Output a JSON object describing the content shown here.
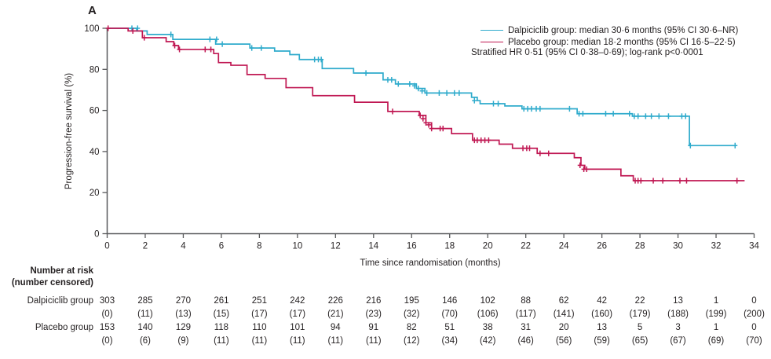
{
  "panel_label": "A",
  "colors": {
    "dalpiciclib": "#2FABCC",
    "placebo": "#C01853",
    "axis": "#58595b",
    "text": "#231f20"
  },
  "chart_data": {
    "type": "line",
    "subtype": "kaplan-meier-step",
    "title": "",
    "xlabel": "Time since randomisation (months)",
    "ylabel": "Progression-free survival (%)",
    "xlim": [
      0,
      34
    ],
    "ylim": [
      0,
      100
    ],
    "xticks": [
      0,
      2,
      4,
      6,
      8,
      10,
      12,
      14,
      16,
      18,
      20,
      22,
      24,
      26,
      28,
      30,
      32,
      34
    ],
    "yticks": [
      0,
      20,
      40,
      60,
      80,
      100
    ],
    "grid": false,
    "legend_position": "top-right",
    "annotation": "Stratified HR 0·51 (95% CI 0·38–0·69); log-rank p<0·0001",
    "series": [
      {
        "name": "Dalpiciclib group",
        "legend": "Dalpiciclib group: median 30·6 months (95% CI 30·6–NR)",
        "color": "#2FABCC",
        "end_month": 33.0,
        "steps": [
          [
            0,
            100
          ],
          [
            1.55,
            98.7
          ],
          [
            2.1,
            97.0
          ],
          [
            3.45,
            94.6
          ],
          [
            5.7,
            92.3
          ],
          [
            7.5,
            90.4
          ],
          [
            8.8,
            88.9
          ],
          [
            9.6,
            87.2
          ],
          [
            10.1,
            84.8
          ],
          [
            11.3,
            80.4
          ],
          [
            12.95,
            78.2
          ],
          [
            14.5,
            74.9
          ],
          [
            15.15,
            72.9
          ],
          [
            16.25,
            70.7
          ],
          [
            16.7,
            68.5
          ],
          [
            19.15,
            66.4
          ],
          [
            19.45,
            64.8
          ],
          [
            19.6,
            63.3
          ],
          [
            20.9,
            62.2
          ],
          [
            21.8,
            60.8
          ],
          [
            24.7,
            58.4
          ],
          [
            27.6,
            57.2
          ],
          [
            30.6,
            42.9
          ]
        ],
        "censors": [
          [
            1.3,
            100
          ],
          [
            1.6,
            100
          ],
          [
            3.35,
            97.0
          ],
          [
            5.4,
            94.6
          ],
          [
            5.75,
            94.6
          ],
          [
            6.05,
            92.3
          ],
          [
            7.6,
            90.4
          ],
          [
            8.1,
            90.4
          ],
          [
            10.9,
            84.8
          ],
          [
            11.1,
            84.8
          ],
          [
            11.25,
            84.8
          ],
          [
            13.6,
            78.2
          ],
          [
            14.75,
            74.9
          ],
          [
            14.95,
            74.9
          ],
          [
            15.3,
            72.9
          ],
          [
            15.9,
            72.9
          ],
          [
            16.15,
            72.0
          ],
          [
            16.35,
            70.7
          ],
          [
            16.55,
            69.5
          ],
          [
            16.8,
            68.5
          ],
          [
            17.45,
            68.5
          ],
          [
            17.85,
            68.5
          ],
          [
            18.25,
            68.5
          ],
          [
            18.5,
            68.5
          ],
          [
            19.3,
            64.8
          ],
          [
            20.3,
            63.3
          ],
          [
            20.55,
            63.3
          ],
          [
            21.9,
            60.8
          ],
          [
            22.1,
            60.8
          ],
          [
            22.3,
            60.8
          ],
          [
            22.55,
            60.8
          ],
          [
            22.75,
            60.8
          ],
          [
            24.3,
            60.8
          ],
          [
            24.8,
            58.4
          ],
          [
            25.0,
            58.4
          ],
          [
            26.2,
            58.4
          ],
          [
            26.6,
            58.4
          ],
          [
            27.45,
            58.4
          ],
          [
            27.7,
            57.2
          ],
          [
            27.9,
            57.2
          ],
          [
            28.3,
            57.2
          ],
          [
            28.6,
            57.2
          ],
          [
            29.0,
            57.2
          ],
          [
            29.5,
            57.2
          ],
          [
            30.2,
            57.2
          ],
          [
            30.4,
            57.2
          ],
          [
            30.65,
            42.9
          ],
          [
            33.0,
            42.9
          ]
        ]
      },
      {
        "name": "Placebo group",
        "legend": "Placebo group: median 18·2 months (95% CI 16·5–22·5)",
        "color": "#C01853",
        "end_month": 33.5,
        "steps": [
          [
            0,
            100
          ],
          [
            1.1,
            98.7
          ],
          [
            1.85,
            95.4
          ],
          [
            3.1,
            93.5
          ],
          [
            3.5,
            91.6
          ],
          [
            3.75,
            89.7
          ],
          [
            5.6,
            87.7
          ],
          [
            5.85,
            83.3
          ],
          [
            6.5,
            82.0
          ],
          [
            7.35,
            77.5
          ],
          [
            8.3,
            75.6
          ],
          [
            9.4,
            71.1
          ],
          [
            10.8,
            67.2
          ],
          [
            13.0,
            64.0
          ],
          [
            14.75,
            59.5
          ],
          [
            16.4,
            57.6
          ],
          [
            16.75,
            54.0
          ],
          [
            17.05,
            51.2
          ],
          [
            18.1,
            48.7
          ],
          [
            19.2,
            45.5
          ],
          [
            20.6,
            43.6
          ],
          [
            21.3,
            41.6
          ],
          [
            22.6,
            39.1
          ],
          [
            24.55,
            37.0
          ],
          [
            24.9,
            33.3
          ],
          [
            25.1,
            31.4
          ],
          [
            27.0,
            28.2
          ],
          [
            27.65,
            25.8
          ]
        ],
        "censors": [
          [
            0.05,
            100
          ],
          [
            1.35,
            98.7
          ],
          [
            1.95,
            95.4
          ],
          [
            3.55,
            91.6
          ],
          [
            3.8,
            89.7
          ],
          [
            5.15,
            89.7
          ],
          [
            5.45,
            89.7
          ],
          [
            15.0,
            59.5
          ],
          [
            16.45,
            57.6
          ],
          [
            16.6,
            56.0
          ],
          [
            16.75,
            54.0
          ],
          [
            16.9,
            53.0
          ],
          [
            17.05,
            51.2
          ],
          [
            17.5,
            51.2
          ],
          [
            17.65,
            51.2
          ],
          [
            19.3,
            45.5
          ],
          [
            19.45,
            45.5
          ],
          [
            19.65,
            45.5
          ],
          [
            19.85,
            45.5
          ],
          [
            20.05,
            45.5
          ],
          [
            21.85,
            41.6
          ],
          [
            22.05,
            41.6
          ],
          [
            22.2,
            41.6
          ],
          [
            22.75,
            39.1
          ],
          [
            23.2,
            39.1
          ],
          [
            24.85,
            33.3
          ],
          [
            25.05,
            31.4
          ],
          [
            25.2,
            31.4
          ],
          [
            27.75,
            25.8
          ],
          [
            27.9,
            25.8
          ],
          [
            28.05,
            25.8
          ],
          [
            28.7,
            25.8
          ],
          [
            29.2,
            25.8
          ],
          [
            30.1,
            25.8
          ],
          [
            30.45,
            25.8
          ],
          [
            33.1,
            25.8
          ]
        ]
      }
    ]
  },
  "risk_table": {
    "header_line1": "Number at risk",
    "header_line2": "(number censored)",
    "time_months": [
      0,
      2,
      4,
      6,
      8,
      10,
      12,
      14,
      16,
      18,
      20,
      22,
      24,
      26,
      28,
      30,
      32,
      34
    ],
    "rows": [
      {
        "label": "Dalpiciclib group",
        "at_risk": [
          "303",
          "285",
          "270",
          "261",
          "251",
          "242",
          "226",
          "216",
          "195",
          "146",
          "102",
          "88",
          "62",
          "42",
          "22",
          "13",
          "1",
          "0"
        ],
        "censored": [
          "(0)",
          "(11)",
          "(13)",
          "(15)",
          "(17)",
          "(17)",
          "(21)",
          "(23)",
          "(32)",
          "(70)",
          "(106)",
          "(117)",
          "(141)",
          "(160)",
          "(179)",
          "(188)",
          "(199)",
          "(200)"
        ]
      },
      {
        "label": "Placebo group",
        "at_risk": [
          "153",
          "140",
          "129",
          "118",
          "110",
          "101",
          "94",
          "91",
          "82",
          "51",
          "38",
          "31",
          "20",
          "13",
          "5",
          "3",
          "1",
          "0"
        ],
        "censored": [
          "(0)",
          "(6)",
          "(9)",
          "(11)",
          "(11)",
          "(11)",
          "(11)",
          "(11)",
          "(12)",
          "(34)",
          "(42)",
          "(46)",
          "(56)",
          "(59)",
          "(65)",
          "(67)",
          "(69)",
          "(70)"
        ]
      }
    ]
  }
}
